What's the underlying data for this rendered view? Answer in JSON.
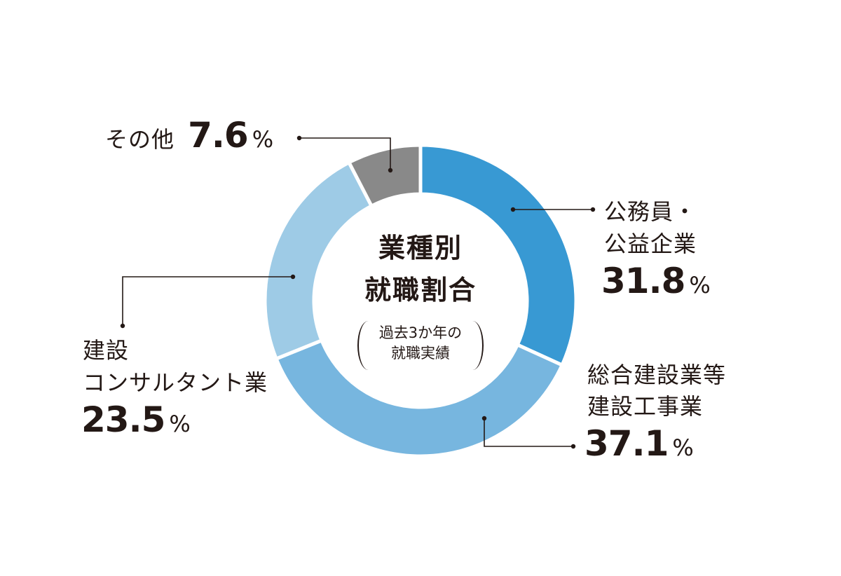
{
  "chart_data": {
    "type": "pie",
    "donut": true,
    "title": "業種別就職割合",
    "title_lines": [
      "業種別",
      "就職割合"
    ],
    "note_lines": [
      "過去3か年の",
      "就職実績"
    ],
    "unit": "%",
    "slices": [
      {
        "name_lines": [
          "公務員・",
          "公益企業"
        ],
        "value": 31.8,
        "value_text": "31.8",
        "color": "#3899d3"
      },
      {
        "name_lines": [
          "総合建設業等",
          "建設工事業"
        ],
        "value": 37.1,
        "value_text": "37.1",
        "color": "#77b6df"
      },
      {
        "name_lines": [
          "建設",
          "コンサルタント業"
        ],
        "value": 23.5,
        "value_text": "23.5",
        "color": "#9ecbe6"
      },
      {
        "name_lines": [
          "その他"
        ],
        "value": 7.6,
        "value_text": "7.6",
        "color": "#898989"
      }
    ]
  }
}
